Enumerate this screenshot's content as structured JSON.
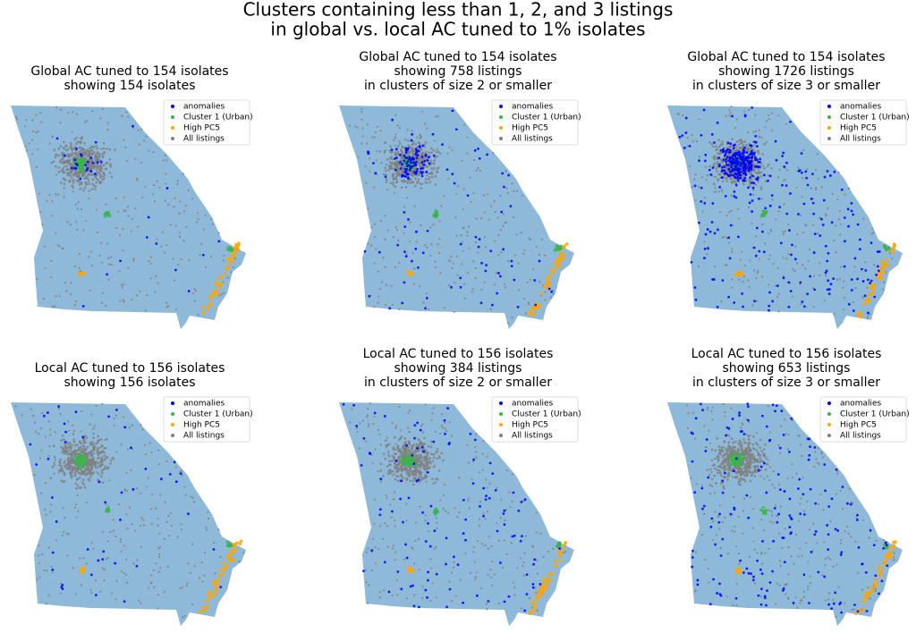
{
  "title": [
    "Clusters containing less than 1, 2, and 3 listings",
    "in global vs. local AC tuned to 1% isolates"
  ],
  "panels": [
    {
      "title": [
        "Global AC tuned to 154 isolates",
        "showing 154 isolates"
      ]
    },
    {
      "title": [
        "Global AC tuned to 154 isolates",
        "showing 758 listings",
        "in clusters of size 2 or smaller"
      ]
    },
    {
      "title": [
        "Global AC tuned to 154 isolates",
        "showing 1726 listings",
        "in clusters of size 3 or smaller"
      ]
    },
    {
      "title": [
        "Local AC tuned to 156 isolates",
        "showing 156 isolates"
      ]
    },
    {
      "title": [
        "Local AC tuned to 156 isolates",
        "showing 384 listings",
        "in clusters of size 2 or smaller"
      ]
    },
    {
      "title": [
        "Local AC tuned to 156 isolates",
        "showing 653 listings",
        "in clusters of size 3 or smaller"
      ]
    }
  ],
  "legend": [
    {
      "label": "anomalies",
      "color": "#0000ff"
    },
    {
      "label": "Cluster 1 (Urban)",
      "color": "#3cb44b"
    },
    {
      "label": "High PC5",
      "color": "#ffa500"
    },
    {
      "label": "All listings",
      "color": "#808080"
    }
  ],
  "map_color": "#8fb9d9"
}
